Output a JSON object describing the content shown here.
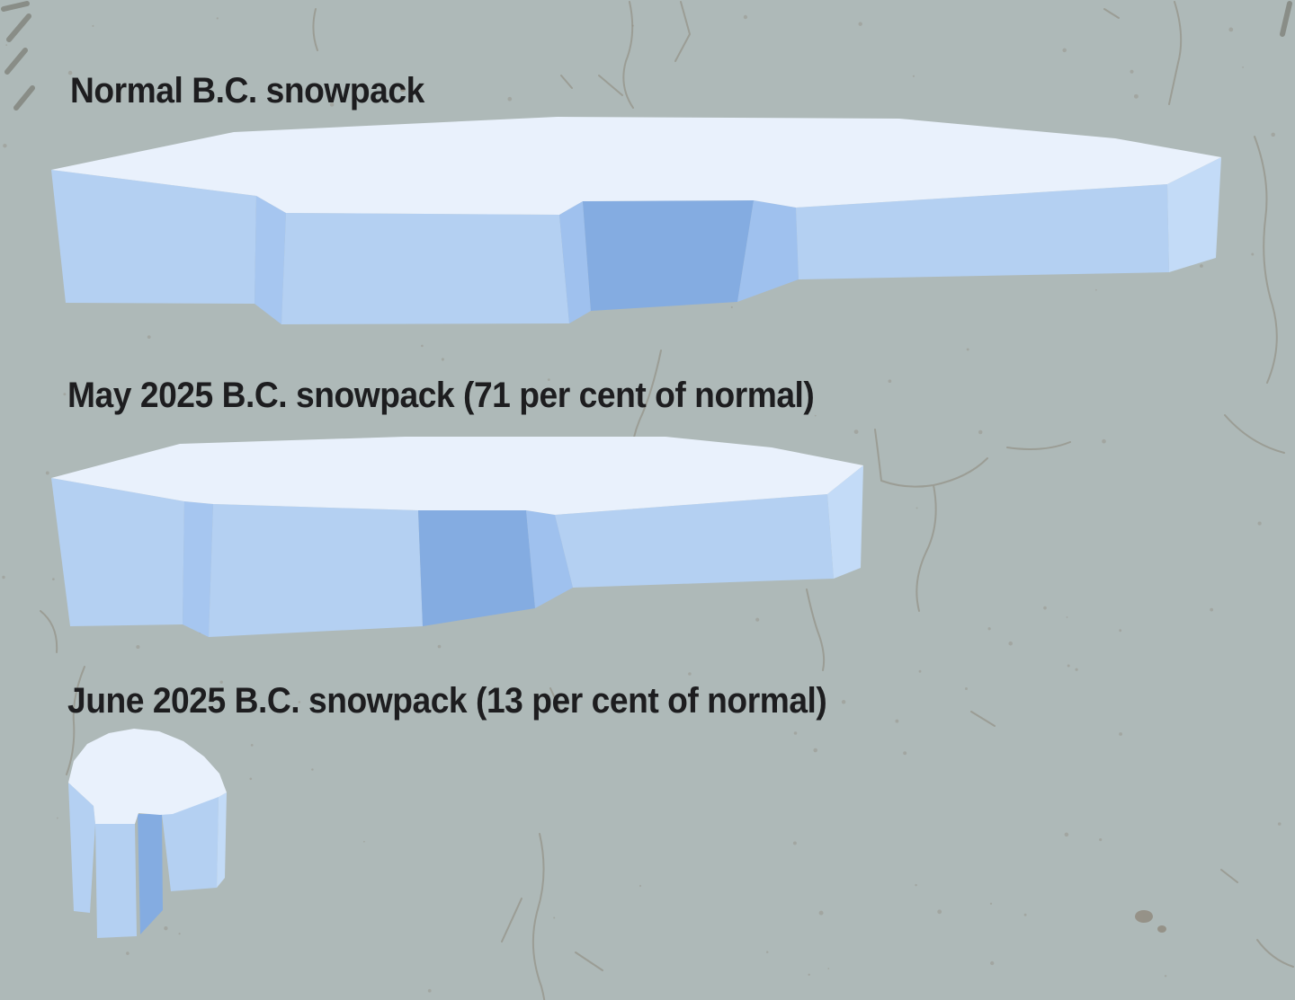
{
  "figure": {
    "kind": "proportional pictogram infographic",
    "subject": "B.C. snowpack size comparison"
  },
  "sections": [
    {
      "name": "normal",
      "label": "Normal B.C. snowpack",
      "percent_of_normal": 100
    },
    {
      "name": "may-2025",
      "label": "May 2025 B.C. snowpack (71 per cent of normal)",
      "percent_of_normal": 71
    },
    {
      "name": "june-2025",
      "label": "June 2025 B.C. snowpack (13 per cent of normal)",
      "percent_of_normal": 13
    }
  ],
  "chart_data": {
    "type": "area",
    "subtype": "proportional pictogram — drawn snow-slab area encodes share of normal snowpack",
    "title": "B.C. snowpack comparison",
    "categories": [
      "Normal B.C. snowpack",
      "May 2025 B.C. snowpack",
      "June 2025 B.C. snowpack"
    ],
    "values": [
      100,
      71,
      13
    ],
    "unit": "per cent of normal",
    "annotations": [
      "Normal B.C. snowpack",
      "May 2025 B.C. snowpack (71 per cent of normal)",
      "June 2025 B.C. snowpack (13 per cent of normal)"
    ],
    "xlabel": "",
    "ylabel": "",
    "legend": "none",
    "axes": "none",
    "grid": false
  },
  "colors": {
    "background": "#aeb9b8",
    "text": "#1d1d1f",
    "snow_top": "#e9f1fc",
    "snow_side_light": "#b4d0f2",
    "snow_side_lighter": "#c3dbf7",
    "snow_side_medium": "#9fc1ee",
    "snow_side_medium_dark": "#a6c6f0",
    "snow_side_dark": "#84ace1",
    "crack": "#8d8678",
    "crack_bold": "#6f6f66",
    "speckle": "#8f897c"
  }
}
